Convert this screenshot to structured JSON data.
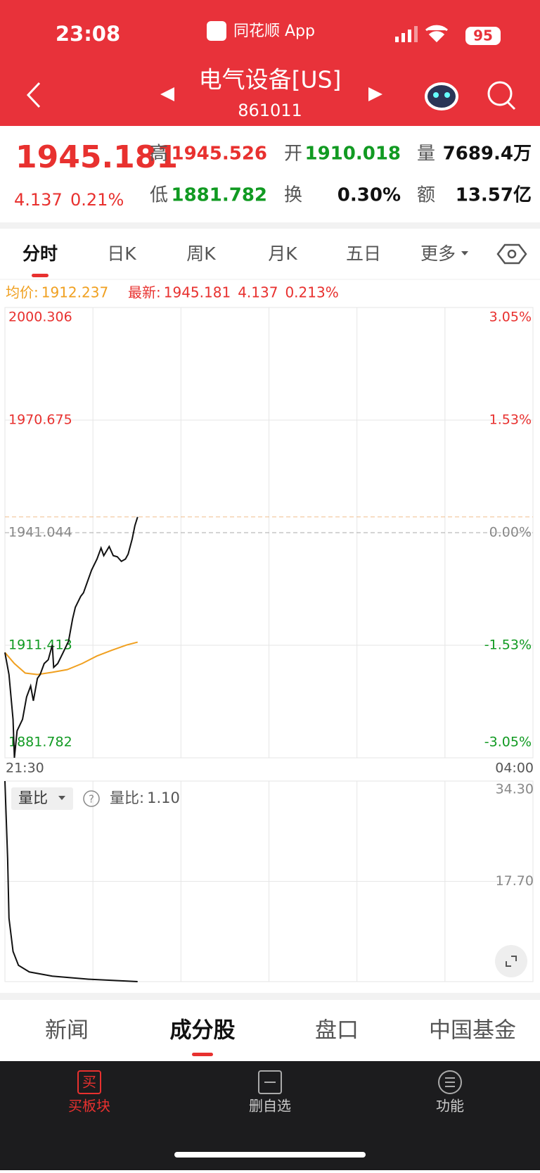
{
  "status_bar": {
    "time": "23:08",
    "app": "同花顺 App",
    "battery": 95
  },
  "header": {
    "title": "电气设备[US]",
    "code": "861011"
  },
  "quote": {
    "price": 1945.181,
    "change": 4.137,
    "change_pct": "0.21%",
    "fields": [
      {
        "label": "高",
        "value": 1945.526
      },
      {
        "label": "开",
        "value": 1910.018
      },
      {
        "label": "量",
        "value": "7689.4万"
      },
      {
        "label": "低",
        "value": 1881.782
      },
      {
        "label": "换",
        "value": "0.30%"
      },
      {
        "label": "额",
        "value": "13.57亿"
      }
    ]
  },
  "tabs": [
    "分时",
    "日K",
    "周K",
    "月K",
    "五日",
    "更多"
  ],
  "intraday": {
    "avg_label": "均价:",
    "avg": 1912.237,
    "last_label": "最新:",
    "last": 1945.181,
    "change": 4.137,
    "change_pct": "0.213%",
    "x_labels": [
      "21:30",
      "04:00"
    ],
    "xlim": [
      0,
      390
    ],
    "xticks": [
      0,
      65,
      130,
      195,
      260,
      325,
      390
    ],
    "ylim": [
      1881.782,
      2000.306
    ],
    "yticks": [
      2000.306,
      1970.675,
      1941.044,
      1911.413,
      1881.782
    ],
    "pct_labels": [
      "3.05%",
      "1.53%",
      "0.00%",
      "-1.53%",
      "-3.05%"
    ],
    "up_color": "#e8312f",
    "down_color": "#119a22",
    "flat_color": "#888888",
    "price_color": "#111111",
    "avg_color": "#f0a020",
    "x": [
      0,
      3,
      6,
      7,
      9,
      13,
      16,
      19,
      21,
      24,
      26,
      29,
      32,
      35,
      36,
      39,
      43,
      47,
      50,
      52,
      56,
      58,
      61,
      64,
      68,
      71,
      73,
      77,
      80,
      83,
      86,
      89,
      91,
      94,
      96,
      98
    ],
    "price": [
      1909.5,
      1903.7,
      1891.9,
      1881.8,
      1888.9,
      1891.9,
      1897.8,
      1900.7,
      1896.8,
      1902.7,
      1903.7,
      1906.6,
      1907.6,
      1911.5,
      1905.6,
      1906.6,
      1909.5,
      1912.5,
      1918.4,
      1921.4,
      1924.3,
      1925.2,
      1928.2,
      1931.2,
      1934.1,
      1937.0,
      1935.0,
      1937.4,
      1935.0,
      1934.7,
      1933.5,
      1934.1,
      1935.4,
      1939.4,
      1942.9,
      1945.181
    ],
    "avg_x": [
      0,
      7,
      15,
      24,
      35,
      46,
      57,
      68,
      79,
      90,
      98
    ],
    "avg_values": [
      1909.5,
      1906.6,
      1904.1,
      1903.7,
      1904.3,
      1905.0,
      1906.6,
      1908.6,
      1910.1,
      1911.5,
      1912.237
    ]
  },
  "volume_ratio": {
    "selector": "量比",
    "current_label": "量比:",
    "current": "1.10",
    "ylim": [
      1.1,
      34.3
    ],
    "yticks": [
      {
        "value": 34.3,
        "label": "34.30"
      },
      {
        "value": 17.7,
        "label": "17.70"
      }
    ],
    "x": [
      0,
      2,
      3,
      6,
      10,
      18,
      35,
      62,
      98
    ],
    "values": [
      34.3,
      21.5,
      11.6,
      6.1,
      3.8,
      2.7,
      2.0,
      1.5,
      1.1
    ]
  },
  "bottom_tabs": [
    "新闻",
    "成分股",
    "盘口",
    "中国基金"
  ],
  "toolbar": [
    {
      "icon": "买",
      "label": "买板块"
    },
    {
      "label": "删自选"
    },
    {
      "label": "功能"
    }
  ]
}
